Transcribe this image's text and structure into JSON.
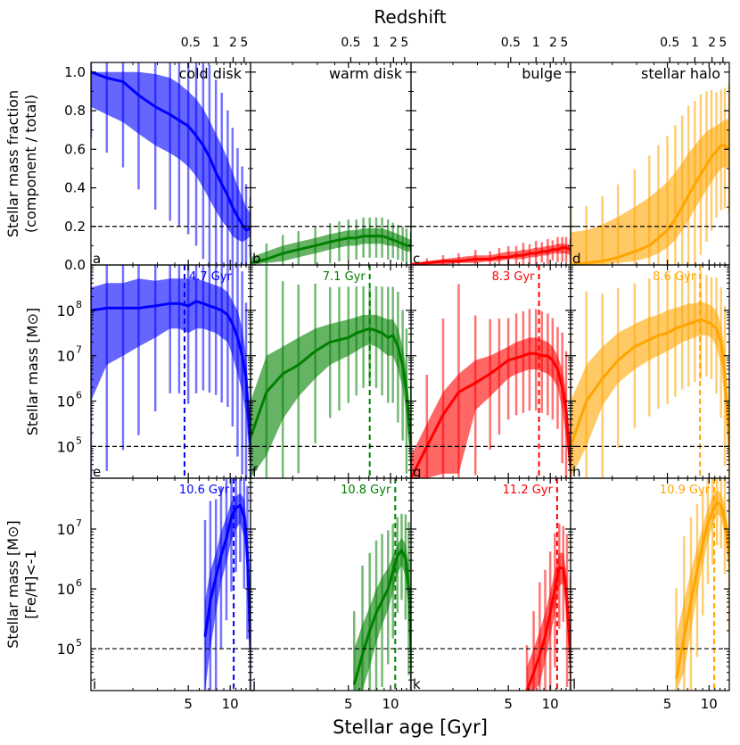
{
  "figure": {
    "top_axis_title": "Redshift",
    "x_axis_title": "Stellar age [Gyr]",
    "row_ylabels": [
      [
        "Stellar mass fraction",
        "(component / total)"
      ],
      [
        "Stellar mass [M⊙]"
      ],
      [
        "Stellar mass [M⊙]",
        "[Fe/H]<-1"
      ]
    ],
    "x_ticks": [
      5,
      10
    ],
    "x_tick_labels": [
      "5",
      "10"
    ],
    "redshift_ticks": [
      {
        "label": "0.5",
        "age": 5.2
      },
      {
        "label": "1",
        "age": 7.9
      },
      {
        "label": "2",
        "age": 10.5
      },
      {
        "label": "5",
        "age": 12.6
      }
    ],
    "row1_y_ticks": [
      0.0,
      0.2,
      0.4,
      0.6,
      0.8,
      1.0
    ],
    "row1_y_tick_labels": [
      "0.0",
      "0.2",
      "0.4",
      "0.6",
      "0.8",
      "1.0"
    ],
    "log_y_ticks": [
      {
        "base": "10",
        "exp": "5",
        "value": 5
      },
      {
        "base": "10",
        "exp": "6",
        "value": 6
      },
      {
        "base": "10",
        "exp": "7",
        "value": 7
      },
      {
        "base": "10",
        "exp": "8",
        "value": 8
      }
    ],
    "log3_y_ticks": [
      {
        "base": "10",
        "exp": "5",
        "value": 5
      },
      {
        "base": "10",
        "exp": "6",
        "value": 6
      },
      {
        "base": "10",
        "exp": "7",
        "value": 7
      }
    ],
    "ref_lines": {
      "row1": 0.2,
      "row2_log": 5,
      "row3_log": 5
    }
  },
  "chart_data": {
    "type": "area",
    "xscale": "log",
    "xlim": [
      1.0,
      14.0
    ],
    "ylim_row1": [
      0.0,
      1.05
    ],
    "ylim_row2_log": [
      4.3,
      9.0
    ],
    "ylim_row3_log": [
      4.3,
      7.85
    ],
    "x": [
      1.0,
      1.3,
      1.7,
      2.2,
      2.9,
      3.7,
      4.3,
      5.0,
      5.7,
      6.4,
      7.1,
      7.9,
      8.7,
      9.6,
      10.4,
      11.3,
      12.2,
      13.0,
      14.0
    ],
    "components": [
      {
        "name": "cold disk",
        "color": "#0000ff",
        "panel_labels": [
          "a",
          "e",
          "i"
        ],
        "fraction": {
          "median": [
            1.0,
            0.97,
            0.95,
            0.88,
            0.82,
            0.78,
            0.75,
            0.72,
            0.67,
            0.62,
            0.56,
            0.48,
            0.42,
            0.36,
            0.3,
            0.25,
            0.21,
            0.18,
            0.19
          ],
          "low": [
            0.82,
            0.78,
            0.74,
            0.68,
            0.62,
            0.58,
            0.55,
            0.51,
            0.46,
            0.4,
            0.34,
            0.28,
            0.23,
            0.19,
            0.15,
            0.13,
            0.12,
            0.13,
            0.15
          ],
          "high": [
            1.0,
            1.0,
            1.0,
            1.0,
            0.99,
            0.97,
            0.94,
            0.9,
            0.86,
            0.81,
            0.75,
            0.68,
            0.62,
            0.55,
            0.48,
            0.41,
            0.35,
            0.3,
            0.27
          ]
        },
        "mass_log": {
          "median": [
            8.0,
            8.05,
            8.05,
            8.05,
            8.1,
            8.15,
            8.15,
            8.1,
            8.2,
            8.15,
            8.1,
            8.05,
            8.0,
            7.9,
            7.7,
            7.4,
            7.0,
            6.5,
            5.0
          ],
          "low": [
            6.0,
            6.8,
            7.0,
            7.2,
            7.4,
            7.6,
            7.6,
            7.5,
            7.6,
            7.6,
            7.55,
            7.5,
            7.4,
            7.3,
            7.0,
            6.6,
            6.2,
            5.7,
            4.4
          ],
          "high": [
            8.5,
            8.6,
            8.6,
            8.7,
            8.65,
            8.7,
            8.7,
            8.7,
            8.7,
            8.65,
            8.6,
            8.55,
            8.5,
            8.4,
            8.2,
            8.0,
            7.6,
            7.0,
            5.5
          ]
        },
        "peak_age": 4.7,
        "peak_label": "4.7 Gyr",
        "metal_poor_log": {
          "x": [
            6.6,
            7.2,
            7.9,
            8.6,
            9.4,
            10.2,
            11.0,
            11.8,
            12.6,
            13.3,
            14.0
          ],
          "median": [
            5.2,
            5.8,
            6.2,
            6.55,
            6.85,
            7.2,
            7.35,
            7.4,
            7.2,
            6.6,
            5.0
          ],
          "low": [
            4.3,
            5.0,
            5.6,
            6.1,
            6.45,
            6.8,
            7.0,
            7.1,
            6.85,
            6.2,
            4.3
          ],
          "high": [
            5.8,
            6.3,
            6.6,
            6.95,
            7.2,
            7.45,
            7.55,
            7.6,
            7.5,
            7.0,
            5.5
          ]
        },
        "metal_peak_age": 10.6,
        "metal_peak_label": "10.6 Gyr"
      },
      {
        "name": "warm disk",
        "color": "#008000",
        "panel_labels": [
          "b",
          "f",
          "j"
        ],
        "fraction": {
          "median": [
            0.01,
            0.03,
            0.06,
            0.08,
            0.1,
            0.12,
            0.13,
            0.14,
            0.14,
            0.15,
            0.15,
            0.15,
            0.15,
            0.14,
            0.13,
            0.12,
            0.11,
            0.1,
            0.1
          ],
          "low": [
            0.0,
            0.01,
            0.02,
            0.04,
            0.06,
            0.08,
            0.09,
            0.1,
            0.1,
            0.11,
            0.11,
            0.11,
            0.11,
            0.1,
            0.1,
            0.09,
            0.08,
            0.07,
            0.07
          ],
          "high": [
            0.04,
            0.07,
            0.1,
            0.12,
            0.14,
            0.16,
            0.17,
            0.18,
            0.18,
            0.19,
            0.19,
            0.19,
            0.19,
            0.18,
            0.17,
            0.16,
            0.15,
            0.14,
            0.13
          ]
        },
        "mass_log": {
          "median": [
            5.2,
            6.2,
            6.6,
            6.8,
            7.1,
            7.3,
            7.35,
            7.4,
            7.5,
            7.55,
            7.6,
            7.55,
            7.5,
            7.4,
            7.45,
            7.2,
            6.8,
            6.2,
            5.0
          ],
          "low": [
            4.3,
            4.8,
            5.6,
            6.1,
            6.5,
            6.8,
            6.9,
            7.0,
            7.1,
            7.2,
            7.25,
            7.2,
            7.1,
            7.0,
            7.0,
            6.7,
            6.3,
            5.7,
            4.4
          ],
          "high": [
            6.0,
            7.0,
            7.2,
            7.4,
            7.6,
            7.7,
            7.75,
            7.8,
            7.85,
            7.9,
            7.9,
            7.9,
            7.85,
            7.8,
            7.8,
            7.6,
            7.2,
            6.7,
            5.5
          ]
        },
        "peak_age": 7.1,
        "peak_label": "7.1 Gyr",
        "metal_poor_log": {
          "x": [
            5.5,
            6.3,
            7.1,
            7.9,
            8.7,
            9.6,
            10.4,
            11.2,
            12.0,
            12.8,
            13.5,
            14.0
          ],
          "median": [
            4.4,
            4.9,
            5.3,
            5.6,
            5.8,
            6.0,
            6.3,
            6.55,
            6.65,
            6.5,
            6.0,
            5.0
          ],
          "low": [
            4.3,
            4.3,
            4.7,
            5.1,
            5.4,
            5.65,
            5.95,
            6.25,
            6.4,
            6.2,
            5.6,
            4.4
          ],
          "high": [
            5.0,
            5.4,
            5.7,
            6.0,
            6.2,
            6.35,
            6.55,
            6.75,
            6.85,
            6.75,
            6.4,
            5.5
          ]
        },
        "metal_peak_age": 10.8,
        "metal_peak_label": "10.8 Gyr"
      },
      {
        "name": "bulge",
        "color": "#ff0000",
        "panel_labels": [
          "c",
          "g",
          "k"
        ],
        "fraction": {
          "median": [
            0.0,
            0.01,
            0.02,
            0.02,
            0.03,
            0.03,
            0.04,
            0.04,
            0.05,
            0.05,
            0.06,
            0.06,
            0.07,
            0.07,
            0.08,
            0.08,
            0.09,
            0.09,
            0.08
          ],
          "low": [
            0.0,
            0.0,
            0.0,
            0.01,
            0.01,
            0.02,
            0.02,
            0.03,
            0.03,
            0.03,
            0.04,
            0.04,
            0.05,
            0.05,
            0.06,
            0.06,
            0.06,
            0.06,
            0.05
          ],
          "high": [
            0.01,
            0.02,
            0.03,
            0.04,
            0.05,
            0.05,
            0.06,
            0.07,
            0.07,
            0.08,
            0.08,
            0.09,
            0.09,
            0.1,
            0.1,
            0.11,
            0.11,
            0.11,
            0.1
          ]
        },
        "mass_log": {
          "median": [
            4.3,
            5.0,
            5.7,
            6.2,
            6.4,
            6.6,
            6.75,
            6.9,
            6.95,
            7.0,
            7.05,
            7.05,
            7.0,
            7.0,
            6.9,
            6.7,
            6.3,
            5.8,
            4.5
          ],
          "low": [
            4.3,
            4.3,
            4.4,
            4.4,
            5.8,
            6.1,
            6.3,
            6.5,
            6.6,
            6.65,
            6.7,
            6.7,
            6.65,
            6.6,
            6.5,
            6.3,
            5.8,
            5.2,
            4.3
          ],
          "high": [
            4.8,
            5.5,
            6.2,
            6.6,
            6.9,
            7.0,
            7.1,
            7.2,
            7.3,
            7.35,
            7.4,
            7.4,
            7.35,
            7.3,
            7.2,
            7.0,
            6.7,
            6.2,
            5.0
          ]
        },
        "peak_age": 8.3,
        "peak_label": "8.3 Gyr",
        "metal_poor_log": {
          "x": [
            6.8,
            7.6,
            8.4,
            9.2,
            10.0,
            10.8,
            11.6,
            12.4,
            13.2,
            14.0
          ],
          "median": [
            4.3,
            4.6,
            4.9,
            5.2,
            5.6,
            6.0,
            6.35,
            6.35,
            5.8,
            4.8
          ],
          "low": [
            4.3,
            4.3,
            4.4,
            4.8,
            5.2,
            5.6,
            6.05,
            6.1,
            5.4,
            4.3
          ],
          "high": [
            4.7,
            5.0,
            5.3,
            5.6,
            5.95,
            6.3,
            6.6,
            6.6,
            6.2,
            5.3
          ]
        },
        "metal_peak_age": 11.2,
        "metal_peak_label": "11.2 Gyr"
      },
      {
        "name": "stellar halo",
        "color": "#ffa500",
        "panel_labels": [
          "d",
          "h",
          "l"
        ],
        "fraction": {
          "median": [
            0.0,
            0.01,
            0.02,
            0.04,
            0.07,
            0.1,
            0.14,
            0.18,
            0.24,
            0.3,
            0.36,
            0.42,
            0.47,
            0.52,
            0.56,
            0.59,
            0.62,
            0.62,
            0.6
          ],
          "low": [
            0.0,
            0.0,
            0.0,
            0.01,
            0.02,
            0.04,
            0.06,
            0.09,
            0.13,
            0.18,
            0.23,
            0.29,
            0.34,
            0.39,
            0.43,
            0.47,
            0.5,
            0.51,
            0.5
          ],
          "high": [
            0.17,
            0.18,
            0.21,
            0.25,
            0.3,
            0.35,
            0.39,
            0.43,
            0.48,
            0.53,
            0.58,
            0.62,
            0.66,
            0.69,
            0.71,
            0.72,
            0.74,
            0.75,
            0.76
          ]
        },
        "mass_log": {
          "median": [
            5.0,
            6.0,
            6.5,
            6.9,
            7.2,
            7.35,
            7.45,
            7.5,
            7.6,
            7.65,
            7.7,
            7.75,
            7.8,
            7.75,
            7.7,
            7.6,
            7.3,
            6.6,
            5.0
          ],
          "low": [
            4.3,
            5.0,
            5.9,
            6.4,
            6.7,
            6.9,
            7.0,
            7.1,
            7.2,
            7.3,
            7.35,
            7.4,
            7.45,
            7.45,
            7.4,
            7.2,
            6.8,
            6.0,
            4.4
          ],
          "high": [
            6.0,
            6.8,
            7.2,
            7.5,
            7.7,
            7.85,
            7.9,
            8.0,
            8.05,
            8.1,
            8.15,
            8.15,
            8.2,
            8.15,
            8.1,
            8.0,
            7.7,
            7.1,
            5.5
          ]
        },
        "peak_age": 8.6,
        "peak_label": "8.6 Gyr",
        "metal_poor_log": {
          "x": [
            5.8,
            6.6,
            7.4,
            8.2,
            9.0,
            9.8,
            10.6,
            11.4,
            12.2,
            13.0,
            14.0
          ],
          "median": [
            4.5,
            5.2,
            5.8,
            6.3,
            6.75,
            7.1,
            7.3,
            7.45,
            7.4,
            7.15,
            6.5
          ],
          "low": [
            4.3,
            4.6,
            5.3,
            5.9,
            6.4,
            6.8,
            7.05,
            7.25,
            7.2,
            6.9,
            6.2
          ],
          "high": [
            5.2,
            5.8,
            6.3,
            6.7,
            7.05,
            7.35,
            7.55,
            7.65,
            7.6,
            7.4,
            6.9
          ]
        },
        "metal_peak_age": 10.9,
        "metal_peak_label": "10.9 Gyr"
      }
    ]
  }
}
